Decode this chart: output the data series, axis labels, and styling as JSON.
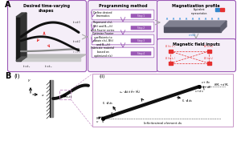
{
  "background_color": "#ffffff",
  "panel_A_label": "A",
  "panel_B_label": "B",
  "panel_border_color": "#c896c8",
  "box1_title": "Desired time-varying\nshapes",
  "box2_title": "Programming method",
  "box3_title": "Magnetization profile",
  "box3b_title": "Magnetic field inputs",
  "box2_steps": [
    "Define desired\nkinematics",
    "Represent ε(s),\nB(t) and Bₑₐᵥ(t)\nwith Fourier series",
    "Optimize Fourier\ncoefficients to\nobtain ε(s), B(t)\nand Bₑₐᵥ(t)",
    "Fabricate material\nbased on\noptimized ε(s)"
  ],
  "step_labels": [
    "Step 1",
    "Step 2",
    "Step 3",
    "Step 4"
  ],
  "purple": "#9b59b6",
  "light_purple": "#f5eef8",
  "red": "#e53030",
  "blue": "#4499dd",
  "cyan_blue": "#5599cc"
}
